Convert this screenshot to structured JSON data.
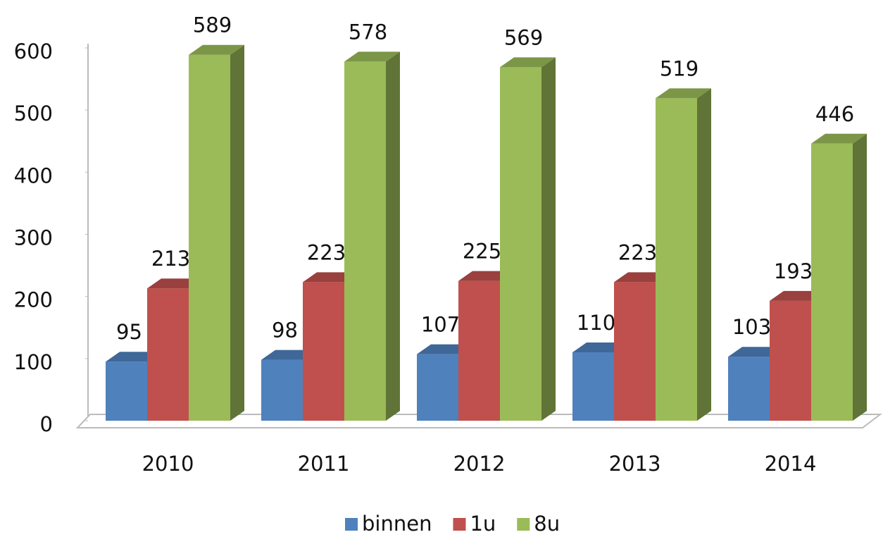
{
  "chart_data": {
    "type": "bar3d",
    "categories": [
      "2010",
      "2011",
      "2012",
      "2013",
      "2014"
    ],
    "series": [
      {
        "name": "binnen",
        "color": "#4f81bd",
        "values": [
          95,
          98,
          107,
          110,
          103
        ]
      },
      {
        "name": "1u",
        "color": "#c0504d",
        "values": [
          213,
          223,
          225,
          223,
          193
        ]
      },
      {
        "name": "8u",
        "color": "#9bbb59",
        "values": [
          589,
          578,
          569,
          519,
          446
        ]
      }
    ],
    "ylim": [
      0,
      600
    ],
    "yticks": [
      0,
      100,
      200,
      300,
      400,
      500,
      600
    ],
    "legend": "bottom"
  }
}
